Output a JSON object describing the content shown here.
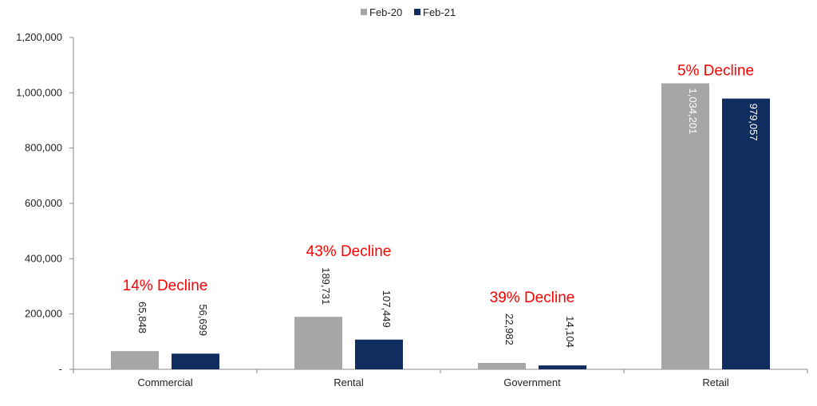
{
  "chart_data": {
    "type": "bar",
    "categories": [
      "Commercial",
      "Rental",
      "Government",
      "Retail"
    ],
    "series": [
      {
        "name": "Feb-20",
        "values": [
          65848,
          189731,
          22982,
          1034201
        ],
        "color": "#a6a6a6"
      },
      {
        "name": "Feb-21",
        "values": [
          56699,
          107449,
          14104,
          979057
        ],
        "color": "#0f2d5e"
      }
    ],
    "data_labels": [
      [
        "65,848",
        "189,731",
        "22,982",
        "1,034,201"
      ],
      [
        "56,699",
        "107,449",
        "14,104",
        "979,057"
      ]
    ],
    "yticks": [
      {
        "value": 0,
        "label": "-"
      },
      {
        "value": 200000,
        "label": "200,000"
      },
      {
        "value": 400000,
        "label": "400,000"
      },
      {
        "value": 600000,
        "label": "600,000"
      },
      {
        "value": 800000,
        "label": "800,000"
      },
      {
        "value": 1000000,
        "label": "1,000,000"
      },
      {
        "value": 1200000,
        "label": "1,200,000"
      }
    ],
    "ylim": [
      0,
      1200000
    ],
    "annotations": [
      "14% Decline",
      "43% Decline",
      "39% Decline",
      "5% Decline"
    ],
    "annotation_color": "#ff0000",
    "inside_label_color": "#ffffff",
    "outside_label_color": "#222222",
    "legend_position": "top-center",
    "grid": false,
    "title": "",
    "xlabel": "",
    "ylabel": ""
  }
}
